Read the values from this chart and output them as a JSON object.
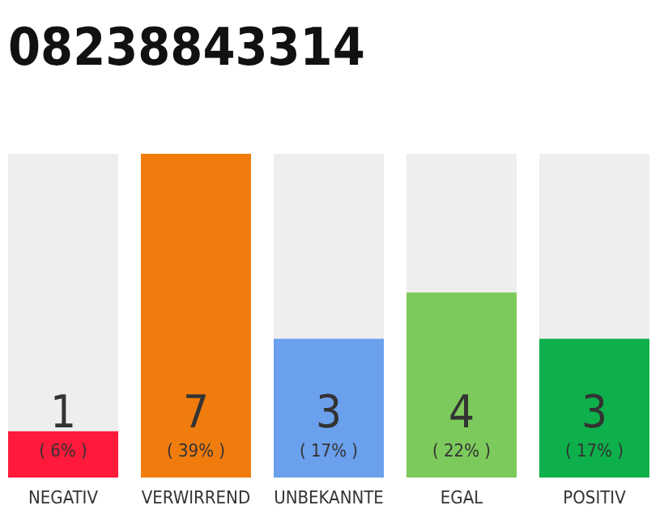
{
  "chart_data": {
    "type": "bar",
    "title": "08238843314",
    "categories": [
      "NEGATIV",
      "VERWIRREND",
      "UNBEKANNTE",
      "EGAL",
      "POSITIV"
    ],
    "values": [
      1,
      7,
      3,
      4,
      3
    ],
    "colors": [
      "#ff1a3c",
      "#f07c0e",
      "#6aa0ec",
      "#7dca5c",
      "#0db04a"
    ],
    "ylim": [
      0,
      7
    ],
    "tick_labels": "x",
    "data_labels": true,
    "grid": false,
    "annotations": [
      "( 6% )",
      "( 39% )",
      "( 17% )",
      "( 22% )",
      "( 17% )"
    ]
  }
}
